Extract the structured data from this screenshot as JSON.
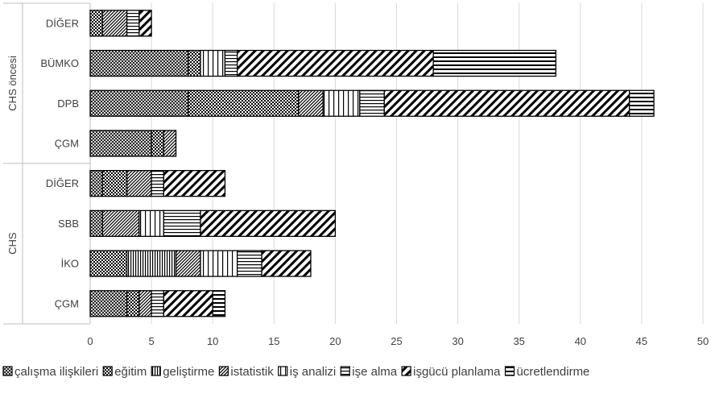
{
  "chart_data": {
    "type": "bar",
    "orientation": "horizontal",
    "stacked": true,
    "xlim": [
      0,
      50
    ],
    "xticks": [
      "0",
      "5",
      "10",
      "15",
      "20",
      "25",
      "30",
      "35",
      "40",
      "45",
      "50"
    ],
    "grid": true,
    "legend_position": "bottom",
    "groups": [
      {
        "label": "CHS öncesi",
        "categories": [
          "DİĞER",
          "BÜMKO",
          "DPB",
          "ÇGM"
        ]
      },
      {
        "label": "CHS",
        "categories": [
          "DİĞER",
          "SBB",
          "İKO",
          "ÇGM"
        ]
      }
    ],
    "categories": [
      "DİĞER",
      "BÜMKO",
      "DPB",
      "ÇGM",
      "DİĞER",
      "SBB",
      "İKO",
      "ÇGM"
    ],
    "series": [
      {
        "name": "çalışma ilişkileri",
        "pattern": "crosshatch",
        "values": [
          0,
          8,
          8,
          5,
          1,
          1,
          0,
          3
        ]
      },
      {
        "name": "eğitim",
        "pattern": "checker",
        "values": [
          1,
          1,
          9,
          1,
          2,
          0,
          3,
          1
        ]
      },
      {
        "name": "geliştirme",
        "pattern": "vertical-dense",
        "values": [
          0,
          0,
          0,
          0,
          0,
          0,
          4,
          0
        ]
      },
      {
        "name": "istatistik",
        "pattern": "diagonal-dense",
        "values": [
          2,
          0,
          2,
          1,
          2,
          3,
          2,
          1
        ]
      },
      {
        "name": "iş analizi",
        "pattern": "vertical",
        "values": [
          0,
          2,
          3,
          0,
          0,
          2,
          3,
          0
        ]
      },
      {
        "name": "işe alma",
        "pattern": "horizontal",
        "values": [
          1,
          1,
          2,
          0,
          1,
          3,
          2,
          1
        ]
      },
      {
        "name": "işgücü planlama",
        "pattern": "diagonal-wide",
        "values": [
          1,
          16,
          20,
          0,
          5,
          11,
          4,
          4
        ]
      },
      {
        "name": "ücretlendirme",
        "pattern": "horizontal-wide",
        "values": [
          0,
          10,
          2,
          0,
          0,
          0,
          0,
          1
        ]
      }
    ]
  }
}
